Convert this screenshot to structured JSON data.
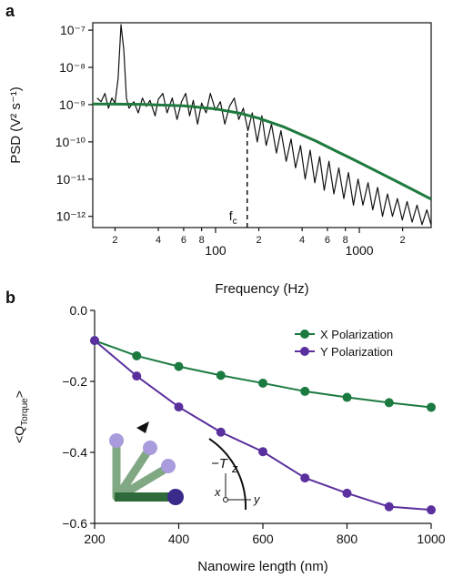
{
  "chart_data": [
    {
      "type": "line",
      "panel_label": "a",
      "xscale": "log",
      "yscale": "log",
      "x_label": "Frequency (Hz)",
      "y_label": "PSD (V² s⁻¹)",
      "xlim": [
        14,
        3160
      ],
      "ylim": [
        5e-13,
        1.58e-07
      ],
      "xticks": [
        {
          "value": 20,
          "label": "2"
        },
        {
          "value": 40,
          "label": "4"
        },
        {
          "value": 60,
          "label": "6"
        },
        {
          "value": 80,
          "label": "8"
        },
        100,
        {
          "value": 200,
          "label": "2"
        },
        {
          "value": 400,
          "label": "4"
        },
        {
          "value": 600,
          "label": "6"
        },
        {
          "value": 800,
          "label": "8"
        },
        1000,
        {
          "value": 2000,
          "label": "2"
        }
      ],
      "yticks": [
        {
          "value": 1e-07,
          "label": "10⁻⁷"
        },
        {
          "value": 1e-08,
          "label": "10⁻⁸"
        },
        {
          "value": 1e-09,
          "label": "10⁻⁹"
        },
        {
          "value": 1e-10,
          "label": "10⁻¹⁰"
        },
        {
          "value": 1e-11,
          "label": "10⁻¹¹"
        },
        {
          "value": 1e-12,
          "label": "10⁻¹²"
        }
      ],
      "series": [
        {
          "color": "#111111",
          "x": [
            15,
            16,
            17,
            18,
            19,
            20,
            21,
            22,
            23,
            24,
            25,
            27,
            29,
            31,
            33,
            35,
            38,
            40,
            43,
            46,
            50,
            54,
            58,
            62,
            66,
            70,
            75,
            80,
            86,
            92,
            100,
            108,
            116,
            125,
            135,
            145,
            156,
            168,
            180,
            195,
            210,
            225,
            245,
            265,
            285,
            310,
            335,
            360,
            390,
            420,
            455,
            490,
            530,
            570,
            615,
            665,
            720,
            780,
            840,
            910,
            980,
            1060,
            1150,
            1240,
            1340,
            1450,
            1570,
            1700,
            1840,
            1990,
            2150,
            2330,
            2520,
            2730,
            2950,
            3150
          ],
          "values": [
            1.5e-09,
            1.2e-09,
            2e-09,
            8e-10,
            1.5e-09,
            1.1e-09,
            5e-09,
            1.4e-07,
            3e-08,
            1.5e-09,
            8e-10,
            1.2e-09,
            6e-10,
            1.5e-09,
            9e-10,
            1.3e-09,
            5e-10,
            1.4e-09,
            2e-09,
            6e-10,
            1.5e-09,
            4e-10,
            1.2e-09,
            2e-09,
            5e-10,
            1.3e-09,
            3e-10,
            1.1e-09,
            6e-10,
            2e-09,
            7e-10,
            1.2e-09,
            3e-10,
            9e-10,
            1.5e-09,
            4e-10,
            8e-10,
            2e-10,
            6e-10,
            1e-10,
            5e-10,
            8e-11,
            3e-10,
            5e-11,
            2e-10,
            3e-11,
            1.2e-10,
            2e-11,
            8e-11,
            1e-11,
            6e-11,
            8e-12,
            4e-11,
            5e-12,
            3e-11,
            4e-12,
            2e-11,
            3e-12,
            1.5e-11,
            2e-12,
            1e-11,
            2e-12,
            8e-12,
            1.5e-12,
            6e-12,
            1e-12,
            4e-12,
            1e-12,
            3e-12,
            8e-13,
            2.5e-12,
            7e-13,
            2e-12,
            6e-13,
            1.5e-12,
            6e-13
          ]
        },
        {
          "color": "#1e7a3e",
          "x": [
            14,
            30,
            60,
            100,
            150,
            200,
            300,
            500,
            700,
            1000,
            1400,
            2000,
            3160
          ],
          "values": [
            1.04e-09,
            1.02e-09,
            9.3e-10,
            7.7e-10,
            5.8e-10,
            4.3e-10,
            2.5e-10,
            1.05e-10,
            5.5e-11,
            2.8e-11,
            1.45e-11,
            7.2e-12,
            2.9e-12
          ]
        }
      ],
      "marker_line": {
        "x": 166,
        "y": 2e-10,
        "text": "f",
        "subscript": "c"
      }
    },
    {
      "type": "line",
      "panel_label": "b",
      "markers": true,
      "legend": "upper right",
      "x_label": "Nanowire length (nm)",
      "y_label": {
        "text": "<Q",
        "subscript": "Torque",
        "suffix": ">"
      },
      "xlim": [
        200,
        1000
      ],
      "ylim": [
        -0.6,
        0
      ],
      "xticks": [
        200,
        400,
        600,
        800,
        1000
      ],
      "yticks": [
        {
          "value": 0,
          "label": "0.0"
        },
        {
          "value": -0.2,
          "label": "−0.2"
        },
        {
          "value": -0.4,
          "label": "−0.4"
        },
        {
          "value": -0.6,
          "label": "−0.6"
        }
      ],
      "x": [
        200,
        300,
        400,
        500,
        600,
        700,
        800,
        900,
        1000
      ],
      "series": [
        {
          "name": "X Polarization",
          "color": "#1b7a40",
          "values": [
            -0.085,
            -0.128,
            -0.158,
            -0.183,
            -0.205,
            -0.228,
            -0.245,
            -0.26,
            -0.273
          ]
        },
        {
          "name": "Y Polarization",
          "color": "#5a2f9e",
          "values": [
            -0.085,
            -0.185,
            -0.272,
            -0.343,
            -0.398,
            -0.472,
            -0.515,
            -0.553,
            -0.562
          ]
        }
      ],
      "annotations": {
        "torque": "−T",
        "z": "z",
        "x": "x",
        "y": "y"
      }
    }
  ]
}
